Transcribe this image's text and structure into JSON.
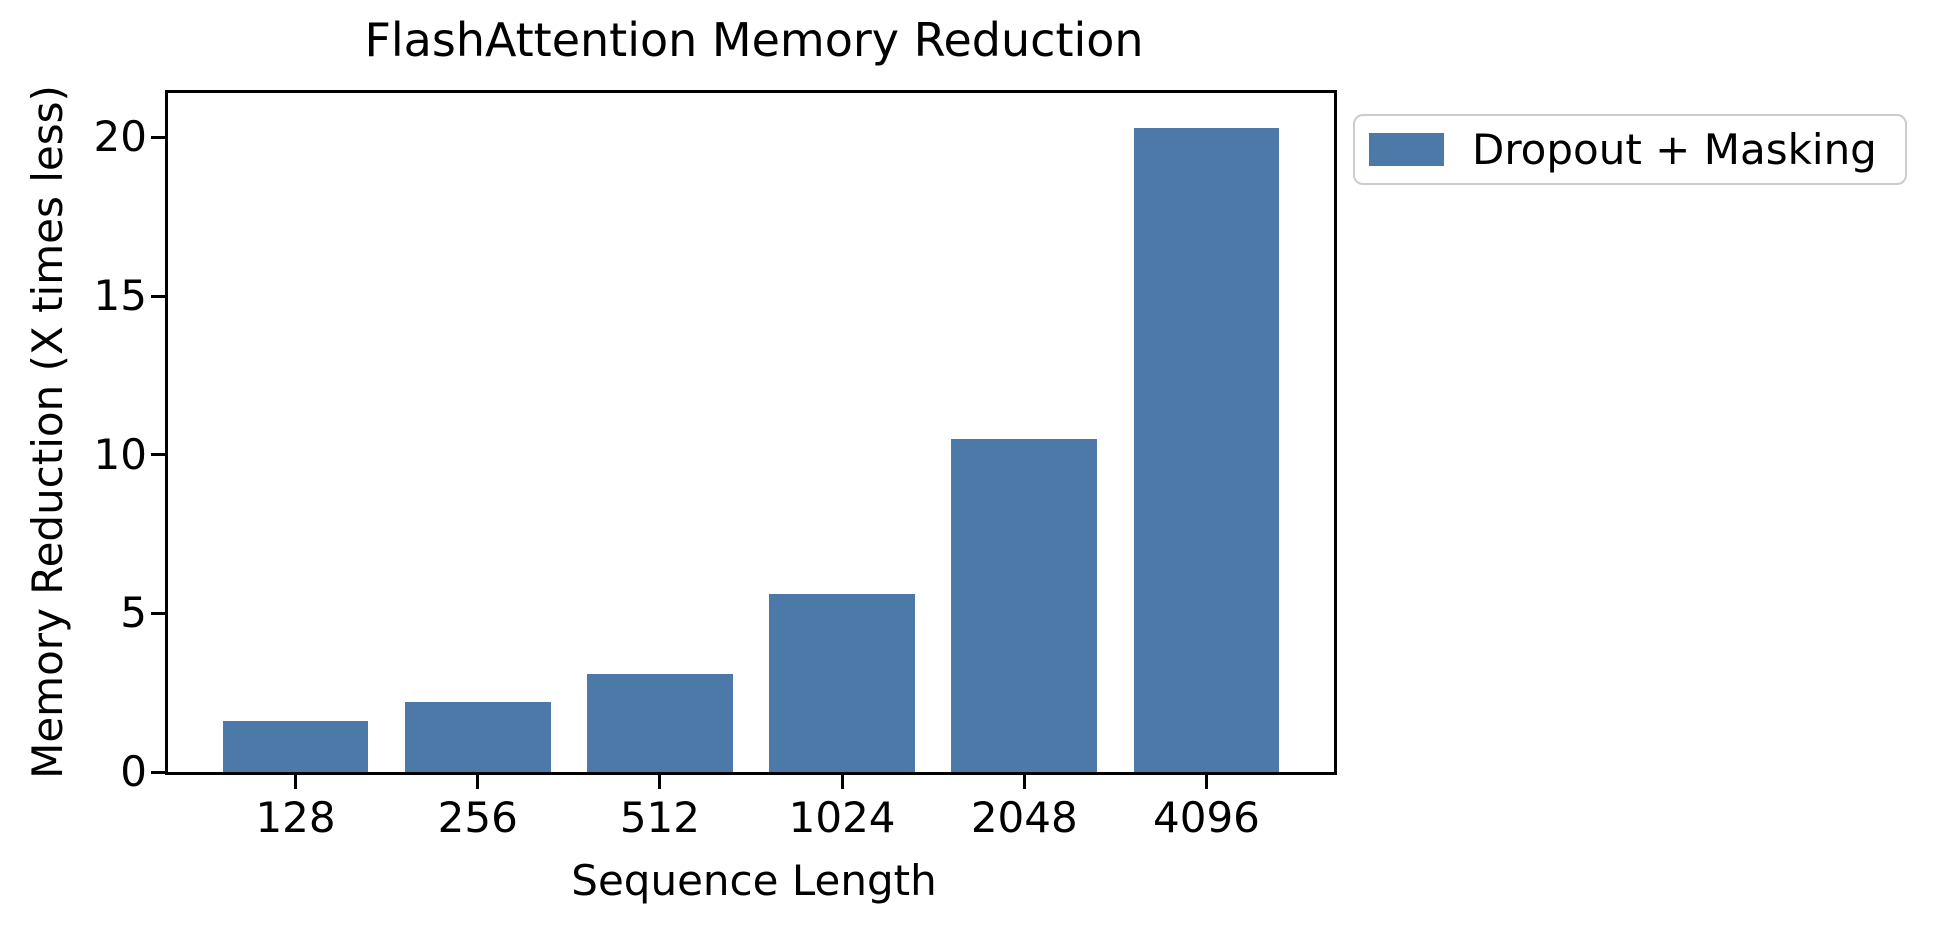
{
  "figure": {
    "background": "#ffffff"
  },
  "chart_data": {
    "type": "bar",
    "title": "FlashAttention Memory Reduction",
    "xlabel": "Sequence Length",
    "ylabel": "Memory Reduction (X times less)",
    "categories": [
      "128",
      "256",
      "512",
      "1024",
      "2048",
      "4096"
    ],
    "values": [
      1.6,
      2.2,
      3.1,
      5.6,
      10.5,
      20.3
    ],
    "bar_color": "#4C79A7",
    "ylim": [
      0,
      21.4
    ],
    "yticks": [
      0,
      5,
      10,
      15,
      20
    ],
    "grid": false,
    "legend": {
      "position": "outside-upper-right",
      "entries": [
        {
          "label": "Dropout + Masking",
          "color": "#4C79A7"
        }
      ]
    }
  }
}
